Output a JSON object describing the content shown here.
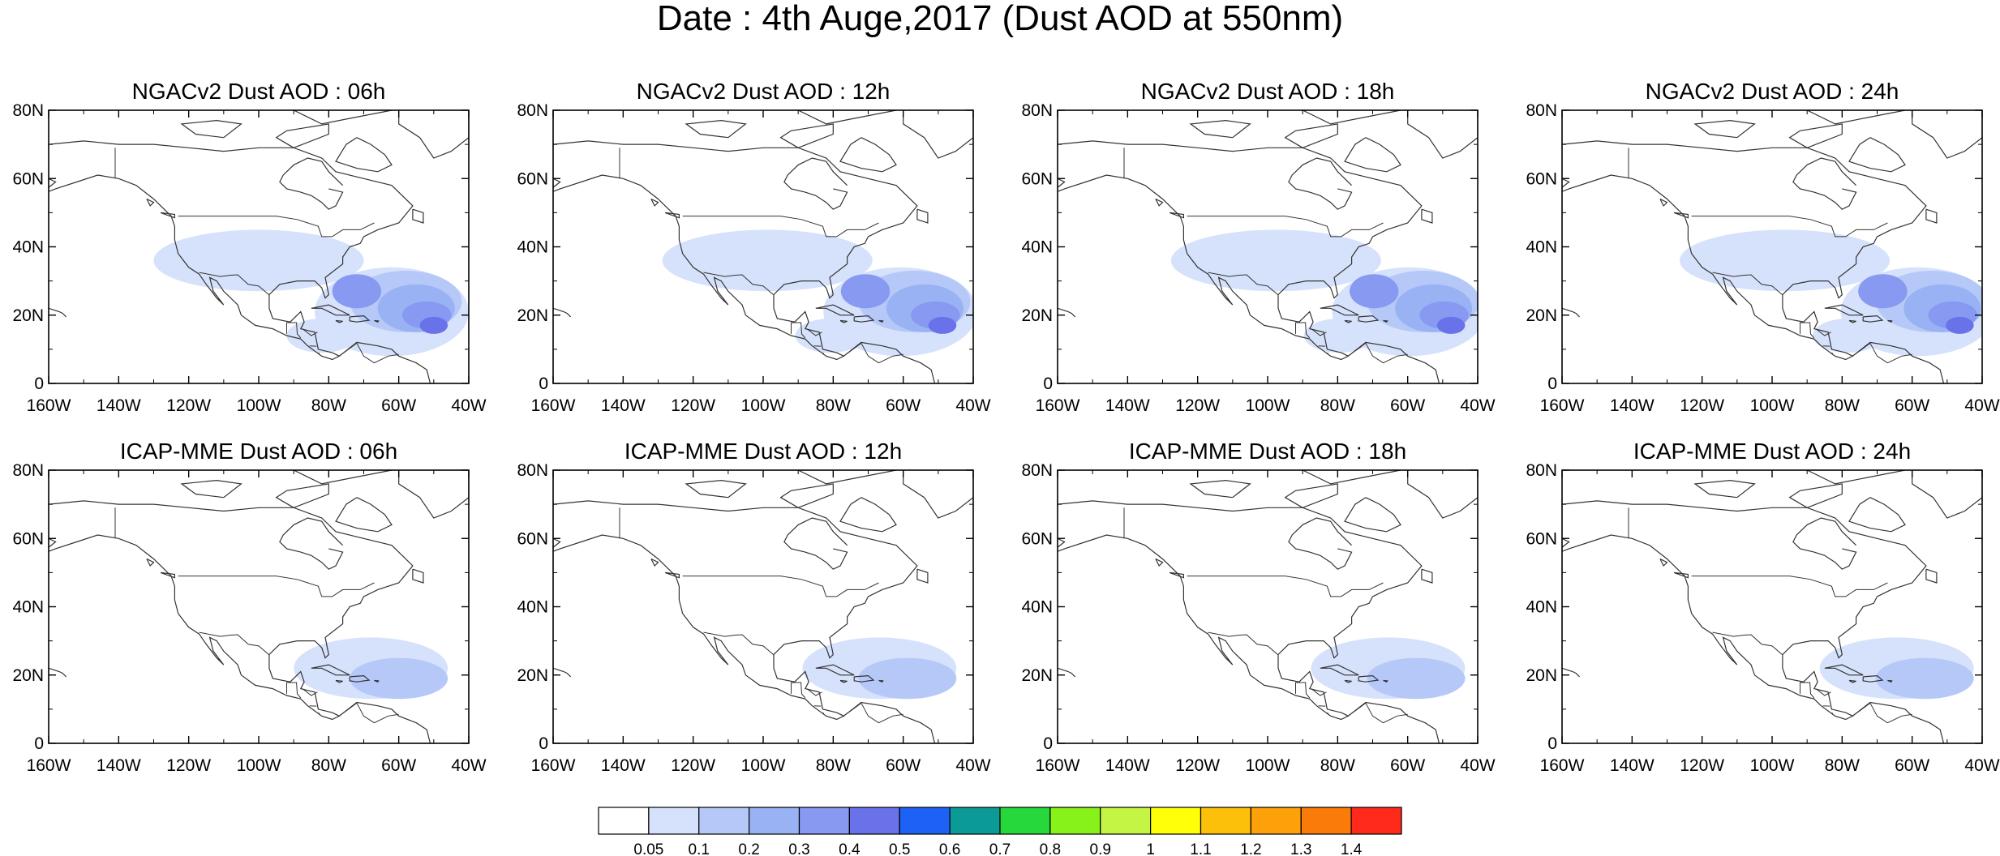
{
  "title": "Date : 4th Auge,2017 (Dust AOD at 550nm)",
  "colors": {
    "land_outline": "#333333",
    "frame": "#000000",
    "levels": [
      "#ffffff",
      "#d6e2fb",
      "#b5c8f7",
      "#98b2f4",
      "#8799f1",
      "#6a72ea",
      "#1e62f5",
      "#0b9a96",
      "#27d83c",
      "#86f21a",
      "#c5f544",
      "#ffff0a",
      "#fdc00a",
      "#fda10a",
      "#fb7b0a",
      "#ff2a1c"
    ]
  },
  "icon": "map-panel",
  "panels": [
    {
      "row": 0,
      "col": 0,
      "title": "NGACv2 Dust AOD : 06h"
    },
    {
      "row": 0,
      "col": 1,
      "title": "NGACv2 Dust AOD : 12h"
    },
    {
      "row": 0,
      "col": 2,
      "title": "NGACv2 Dust AOD : 18h"
    },
    {
      "row": 0,
      "col": 3,
      "title": "NGACv2 Dust AOD : 24h"
    },
    {
      "row": 1,
      "col": 0,
      "title": "ICAP-MME Dust AOD : 06h"
    },
    {
      "row": 1,
      "col": 1,
      "title": "ICAP-MME Dust AOD : 12h"
    },
    {
      "row": 1,
      "col": 2,
      "title": "ICAP-MME Dust AOD : 18h"
    },
    {
      "row": 1,
      "col": 3,
      "title": "ICAP-MME Dust AOD : 24h"
    }
  ],
  "axes": {
    "lon_ticks": [
      -160,
      -140,
      -120,
      -100,
      -80,
      -60,
      -40
    ],
    "lon_tick_labels": [
      "160W",
      "140W",
      "120W",
      "100W",
      "80W",
      "60W",
      "40W"
    ],
    "lat_ticks": [
      0,
      20,
      40,
      60,
      80
    ],
    "lat_tick_labels": [
      "0",
      "20N",
      "40N",
      "60N",
      "80N"
    ],
    "lon_range": [
      -160,
      -40
    ],
    "lat_range": [
      0,
      80
    ]
  },
  "colorbar": {
    "labels": [
      "0.05",
      "0.1",
      "0.2",
      "0.3",
      "0.4",
      "0.5",
      "0.6",
      "0.7",
      "0.8",
      "0.9",
      "1",
      "1.1",
      "1.2",
      "1.3",
      "1.4"
    ]
  },
  "fields": {
    "ngac": [
      {
        "lon": -62,
        "lat": 21,
        "rx": 22,
        "ry": 13,
        "level": 1
      },
      {
        "lon": -100,
        "lat": 36,
        "rx": 30,
        "ry": 9,
        "level": 1
      },
      {
        "lon": -82,
        "lat": 14,
        "rx": 10,
        "ry": 5,
        "level": 1
      },
      {
        "lon": -58,
        "lat": 24,
        "rx": 16,
        "ry": 9,
        "level": 2
      },
      {
        "lon": -55,
        "lat": 22,
        "rx": 11,
        "ry": 7,
        "level": 3
      },
      {
        "lon": -72,
        "lat": 27,
        "rx": 7,
        "ry": 5,
        "level": 4
      },
      {
        "lon": -52,
        "lat": 20,
        "rx": 7,
        "ry": 4,
        "level": 4
      },
      {
        "lon": -50,
        "lat": 17,
        "rx": 4,
        "ry": 2.5,
        "level": 5
      }
    ],
    "icap": [
      {
        "lon": -68,
        "lat": 22,
        "rx": 22,
        "ry": 9,
        "level": 1
      },
      {
        "lon": -60,
        "lat": 19,
        "rx": 14,
        "ry": 6,
        "level": 2
      }
    ]
  },
  "land": [
    [
      [
        -168,
        66
      ],
      [
        -160,
        70
      ],
      [
        -150,
        71
      ],
      [
        -140,
        70
      ],
      [
        -130,
        70
      ],
      [
        -120,
        69
      ],
      [
        -110,
        68
      ],
      [
        -100,
        69
      ],
      [
        -90,
        69
      ],
      [
        -82,
        66
      ],
      [
        -78,
        62
      ],
      [
        -70,
        60
      ],
      [
        -62,
        58
      ],
      [
        -56,
        52
      ],
      [
        -60,
        47
      ],
      [
        -66,
        45
      ],
      [
        -70,
        43
      ],
      [
        -71,
        41
      ],
      [
        -74,
        40
      ],
      [
        -76,
        37
      ],
      [
        -76,
        35
      ],
      [
        -81,
        31
      ],
      [
        -80,
        26
      ],
      [
        -81,
        25
      ],
      [
        -82,
        28
      ],
      [
        -84,
        30
      ],
      [
        -89,
        30
      ],
      [
        -94,
        29
      ],
      [
        -97,
        26
      ],
      [
        -97,
        22
      ],
      [
        -96,
        19
      ],
      [
        -91,
        18
      ],
      [
        -88,
        21
      ],
      [
        -87,
        18
      ],
      [
        -88,
        16
      ],
      [
        -84,
        15
      ],
      [
        -83,
        10
      ],
      [
        -79,
        9
      ],
      [
        -77,
        8
      ],
      [
        -79,
        7
      ],
      [
        -82,
        8
      ],
      [
        -86,
        11
      ],
      [
        -88,
        13
      ],
      [
        -92,
        14
      ],
      [
        -96,
        16
      ],
      [
        -101,
        17
      ],
      [
        -105,
        20
      ],
      [
        -106,
        23
      ],
      [
        -110,
        27
      ],
      [
        -112,
        30
      ],
      [
        -114,
        31
      ],
      [
        -113,
        27
      ],
      [
        -110,
        23
      ],
      [
        -112,
        25
      ],
      [
        -115,
        29
      ],
      [
        -117,
        32
      ],
      [
        -120,
        34
      ],
      [
        -123,
        38
      ],
      [
        -124,
        42
      ],
      [
        -124,
        46
      ],
      [
        -125,
        49
      ],
      [
        -130,
        54
      ],
      [
        -135,
        58
      ],
      [
        -140,
        60
      ],
      [
        -146,
        61
      ],
      [
        -152,
        59
      ],
      [
        -158,
        57
      ],
      [
        -163,
        55
      ],
      [
        -158,
        59
      ],
      [
        -164,
        62
      ],
      [
        -168,
        66
      ]
    ],
    [
      [
        -77,
        8
      ],
      [
        -72,
        12
      ],
      [
        -66,
        11
      ],
      [
        -62,
        10
      ],
      [
        -60,
        8
      ],
      [
        -55,
        6
      ],
      [
        -52,
        4
      ],
      [
        -51,
        0
      ]
    ],
    [
      [
        -78,
        0
      ],
      [
        -80,
        -1
      ]
    ],
    [
      [
        -85,
        22
      ],
      [
        -80,
        23
      ],
      [
        -76,
        21
      ],
      [
        -74,
        20
      ],
      [
        -78,
        20
      ],
      [
        -82,
        22
      ],
      [
        -85,
        22
      ]
    ],
    [
      [
        -74,
        19.5
      ],
      [
        -70,
        19.8
      ],
      [
        -68.5,
        18.5
      ],
      [
        -72,
        18
      ],
      [
        -74,
        18.3
      ],
      [
        -74,
        19.5
      ]
    ],
    [
      [
        -78,
        18.4
      ],
      [
        -76,
        18.2
      ],
      [
        -77,
        17.8
      ],
      [
        -78,
        18.4
      ]
    ],
    [
      [
        -67,
        18.4
      ],
      [
        -65.8,
        18.3
      ],
      [
        -66,
        18
      ],
      [
        -67,
        18.4
      ]
    ],
    [
      [
        -90,
        69
      ],
      [
        -80,
        73
      ],
      [
        -80,
        76
      ],
      [
        -92,
        74
      ],
      [
        -95,
        72
      ],
      [
        -90,
        69
      ]
    ],
    [
      [
        -72,
        72
      ],
      [
        -68,
        70
      ],
      [
        -64,
        67
      ],
      [
        -62,
        64
      ],
      [
        -66,
        62
      ],
      [
        -72,
        63
      ],
      [
        -78,
        65
      ],
      [
        -75,
        70
      ],
      [
        -72,
        72
      ]
    ],
    [
      [
        -110,
        72
      ],
      [
        -118,
        73
      ],
      [
        -122,
        76
      ],
      [
        -112,
        77
      ],
      [
        -105,
        76
      ],
      [
        -110,
        72
      ]
    ],
    [
      [
        -90,
        80
      ],
      [
        -80,
        82
      ],
      [
        -70,
        82
      ],
      [
        -62,
        80
      ],
      [
        -72,
        78
      ],
      [
        -82,
        76
      ],
      [
        -90,
        80
      ]
    ],
    [
      [
        -60,
        82
      ],
      [
        -45,
        82
      ],
      [
        -40,
        80
      ],
      [
        -40,
        72
      ],
      [
        -45,
        68
      ],
      [
        -50,
        66
      ],
      [
        -54,
        72
      ],
      [
        -60,
        76
      ],
      [
        -60,
        82
      ]
    ],
    [
      [
        -56,
        51
      ],
      [
        -56,
        48
      ],
      [
        -53,
        47
      ],
      [
        -53,
        50
      ],
      [
        -56,
        51
      ]
    ],
    [
      [
        -132,
        54
      ],
      [
        -131,
        52
      ],
      [
        -130,
        53
      ],
      [
        -132,
        54
      ]
    ],
    [
      [
        -128,
        50
      ],
      [
        -124,
        48.5
      ],
      [
        -124,
        49.5
      ],
      [
        -128,
        50
      ]
    ],
    [
      [
        -80,
        57
      ],
      [
        -76,
        56
      ],
      [
        -78,
        52
      ],
      [
        -80,
        51
      ],
      [
        -82,
        53
      ],
      [
        -85,
        55
      ],
      [
        -88,
        56
      ],
      [
        -92,
        57
      ],
      [
        -94,
        59
      ],
      [
        -93,
        61
      ],
      [
        -90,
        64
      ],
      [
        -86,
        66
      ],
      [
        -82,
        65
      ],
      [
        -80,
        62
      ],
      [
        -78,
        60
      ],
      [
        -76,
        58
      ]
    ],
    [
      [
        -160,
        22
      ],
      [
        -158.5,
        21.5
      ],
      [
        -157,
        21
      ],
      [
        -156,
        20.5
      ],
      [
        -155,
        19.5
      ]
    ]
  ],
  "borders": [
    [
      [
        -141,
        60
      ],
      [
        -141,
        69
      ]
    ],
    [
      [
        -123,
        49
      ],
      [
        -95,
        49
      ],
      [
        -89,
        48
      ],
      [
        -83,
        46
      ],
      [
        -82,
        43
      ],
      [
        -79,
        43
      ],
      [
        -76,
        45
      ],
      [
        -71,
        45
      ],
      [
        -67,
        47
      ]
    ],
    [
      [
        -117,
        32.5
      ],
      [
        -111,
        31.3
      ],
      [
        -108,
        31.7
      ],
      [
        -106,
        31.8
      ],
      [
        -103,
        29
      ],
      [
        -100,
        28.5
      ],
      [
        -97,
        25.9
      ]
    ],
    [
      [
        -92,
        14.5
      ],
      [
        -92,
        17.8
      ],
      [
        -91,
        17.8
      ],
      [
        -89.2,
        17.8
      ],
      [
        -89,
        14.5
      ],
      [
        -88,
        13.3
      ]
    ],
    [
      [
        -87.5,
        16
      ],
      [
        -85,
        14
      ],
      [
        -83.2,
        15
      ]
    ],
    [
      [
        -85.5,
        11
      ],
      [
        -83.5,
        10.9
      ]
    ],
    [
      [
        -82.9,
        9
      ],
      [
        -82.6,
        8.3
      ]
    ],
    [
      [
        -77.2,
        7.9
      ],
      [
        -75,
        9.5
      ],
      [
        -72,
        11.8
      ]
    ],
    [
      [
        -72,
        11.8
      ],
      [
        -70,
        8
      ],
      [
        -67,
        6
      ],
      [
        -63,
        8
      ],
      [
        -60,
        8.5
      ]
    ]
  ]
}
